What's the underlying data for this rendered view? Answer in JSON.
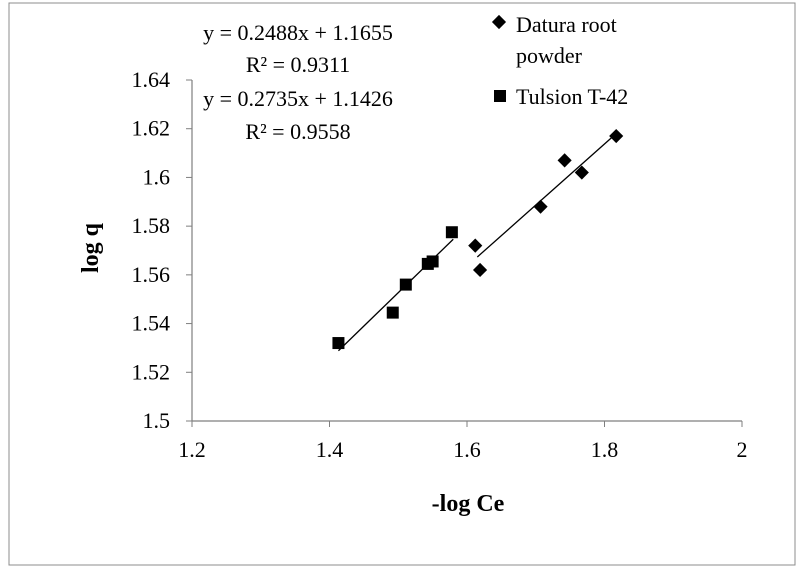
{
  "chart_data": {
    "type": "scatter",
    "title": "",
    "xlabel": "-log Ce",
    "ylabel": "log q",
    "xlim": [
      1.2,
      2
    ],
    "ylim": [
      1.5,
      1.64
    ],
    "xticks": [
      1.2,
      1.4,
      1.6,
      1.8,
      2
    ],
    "yticks": [
      1.5,
      1.52,
      1.54,
      1.56,
      1.58,
      1.6,
      1.62,
      1.64
    ],
    "xtick_labels": [
      "1.2",
      "1.4",
      "1.6",
      "1.8",
      "2"
    ],
    "ytick_labels": [
      "1.5",
      "1.52",
      "1.54",
      "1.56",
      "1.58",
      "1.6",
      "1.62",
      "1.64"
    ],
    "grid": false,
    "legend_position": "top-right",
    "series": [
      {
        "name": "Datura root powder",
        "legend_lines": [
          "Datura root",
          "powder"
        ],
        "marker": "diamond",
        "x": [
          1.612,
          1.619,
          1.707,
          1.742,
          1.767,
          1.817
        ],
        "y": [
          1.572,
          1.562,
          1.588,
          1.607,
          1.602,
          1.617
        ],
        "trendline": {
          "x_range": [
            1.615,
            1.82
          ],
          "equation_line1": "y = 0.2488x + 1.1655",
          "equation_line2": "R² = 0.9311"
        }
      },
      {
        "name": "Tulsion T-42",
        "legend_lines": [
          "Tulsion T-42"
        ],
        "marker": "square",
        "x": [
          1.413,
          1.492,
          1.511,
          1.543,
          1.55,
          1.578
        ],
        "y": [
          1.532,
          1.5445,
          1.556,
          1.5645,
          1.5655,
          1.5775
        ],
        "trendline": {
          "x_range": [
            1.413,
            1.58
          ],
          "equation_line1": "y = 0.2735x + 1.1426",
          "equation_line2": "R² = 0.9558"
        }
      }
    ]
  }
}
